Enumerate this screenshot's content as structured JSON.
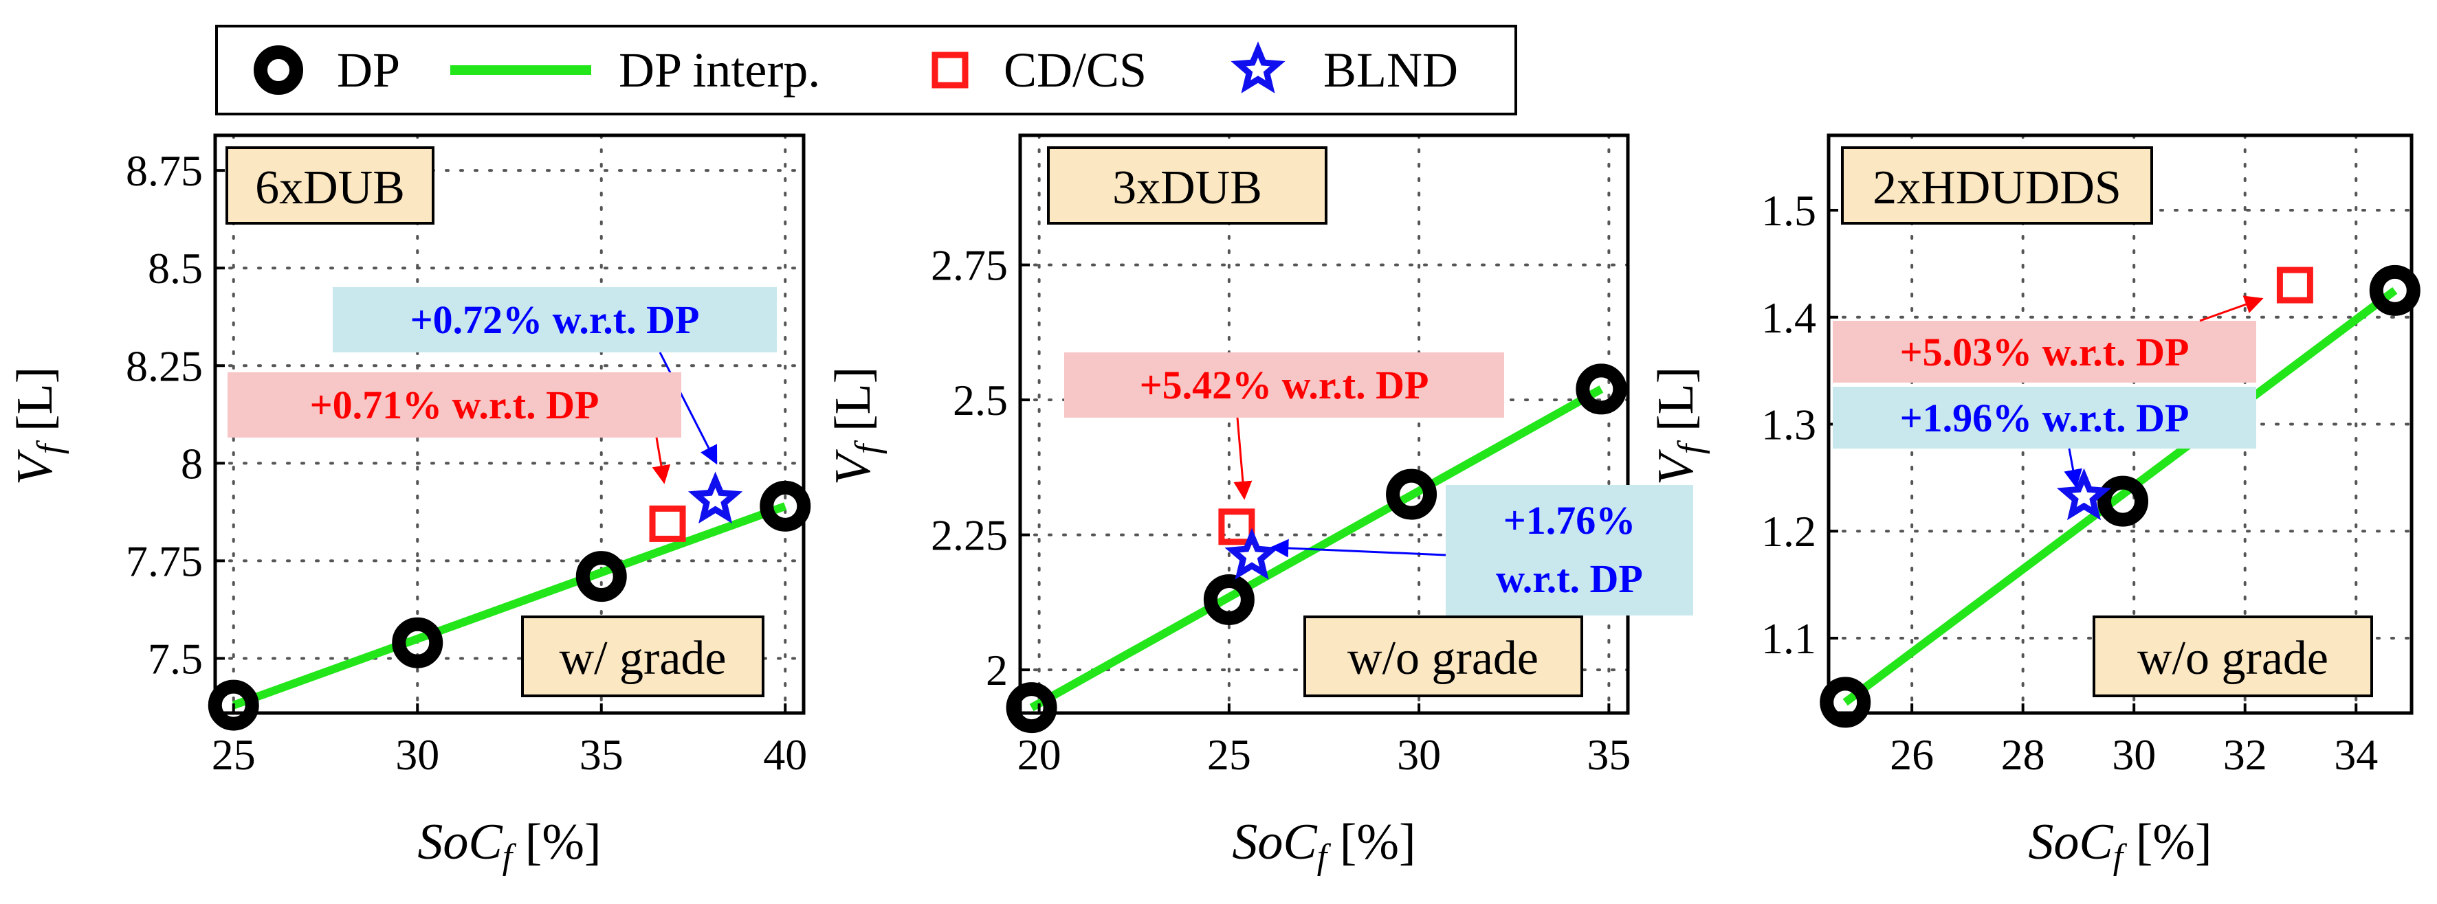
{
  "legend": {
    "items": [
      {
        "label": "DP",
        "marker": "circle"
      },
      {
        "label": "DP interp.",
        "marker": "line"
      },
      {
        "label": "CD/CS",
        "marker": "square"
      },
      {
        "label": "BLND",
        "marker": "star"
      }
    ]
  },
  "colors": {
    "dp": "#000000",
    "interp": "#22e61a",
    "cdcs": "#ff1a1a",
    "blnd": "#1010ee",
    "tagbox": "#fbe7c2",
    "redbox": "#f7c6c6",
    "bluebox": "#c8e8ee",
    "redtext": "#ff0000",
    "bluetext": "#0000ff",
    "grid": "#555555"
  },
  "chart_data": [
    {
      "type": "scatter",
      "title": "6xDUB",
      "condition": "w/ grade",
      "xlabel": "SoC_f [%]",
      "ylabel": "V_f [L]",
      "xlim": [
        24.5,
        40.5
      ],
      "ylim": [
        7.36,
        8.84
      ],
      "xticks": [
        25,
        30,
        35,
        40
      ],
      "xticklabels": [
        "25",
        "30",
        "35",
        "40"
      ],
      "yticks": [
        7.5,
        7.75,
        8,
        8.25,
        8.5,
        8.75
      ],
      "yticklabels": [
        "7.5",
        "7.75",
        "8",
        "8.25",
        "8.5",
        "8.75"
      ],
      "dp": {
        "x": [
          25,
          30,
          35,
          40
        ],
        "y": [
          7.38,
          7.54,
          7.71,
          7.89
        ]
      },
      "interp": {
        "x": [
          25,
          40
        ],
        "y": [
          7.38,
          7.89
        ]
      },
      "cdcs": {
        "x": 36.8,
        "y": 7.845
      },
      "blnd": {
        "x": 38.1,
        "y": 7.905
      },
      "annotations": [
        {
          "text": "+0.72% w.r.t. DP",
          "color": "blue"
        },
        {
          "text": "+0.71% w.r.t. DP",
          "color": "red"
        }
      ]
    },
    {
      "type": "scatter",
      "title": "3xDUB",
      "condition": "w/o grade",
      "xlabel": "SoC_f [%]",
      "ylabel": "V_f [L]",
      "xlim": [
        19.5,
        35.5
      ],
      "ylim": [
        1.92,
        2.99
      ],
      "xticks": [
        20,
        25,
        30,
        35
      ],
      "xticklabels": [
        "20",
        "25",
        "30",
        "35"
      ],
      "yticks": [
        2,
        2.25,
        2.5,
        2.75
      ],
      "yticklabels": [
        "2",
        "2.25",
        "2.5",
        "2.75"
      ],
      "dp": {
        "x": [
          19.8,
          25.0,
          29.8,
          34.8
        ],
        "y": [
          1.93,
          2.13,
          2.325,
          2.52
        ]
      },
      "interp": {
        "x": [
          19.8,
          34.8
        ],
        "y": [
          1.93,
          2.52
        ]
      },
      "cdcs": {
        "x": 25.2,
        "y": 2.265
      },
      "blnd": {
        "x": 25.6,
        "y": 2.21
      },
      "annotations": [
        {
          "text": "+5.42% w.r.t. DP",
          "color": "red"
        },
        {
          "text": "+1.76%",
          "text2": "w.r.t. DP",
          "color": "blue"
        }
      ]
    },
    {
      "type": "scatter",
      "title": "2xHDUDDS",
      "condition": "w/o grade",
      "xlabel": "SoC_f [%]",
      "ylabel": "V_f [L]",
      "xlim": [
        24.5,
        35.0
      ],
      "ylim": [
        1.03,
        1.57
      ],
      "xticks": [
        26,
        28,
        30,
        32,
        34
      ],
      "xticklabels": [
        "26",
        "28",
        "30",
        "32",
        "34"
      ],
      "yticks": [
        1.1,
        1.2,
        1.3,
        1.4,
        1.5
      ],
      "yticklabels": [
        "1.1",
        "1.2",
        "1.3",
        "1.4",
        "1.5"
      ],
      "dp": {
        "x": [
          24.8,
          29.8,
          34.7
        ],
        "y": [
          1.04,
          1.228,
          1.425
        ]
      },
      "interp": {
        "x": [
          24.8,
          34.7
        ],
        "y": [
          1.04,
          1.425
        ]
      },
      "cdcs": {
        "x": 32.9,
        "y": 1.43
      },
      "blnd": {
        "x": 29.1,
        "y": 1.232
      },
      "annotations": [
        {
          "text": "+5.03% w.r.t. DP",
          "color": "red"
        },
        {
          "text": "+1.96% w.r.t. DP",
          "color": "blue"
        }
      ]
    }
  ]
}
